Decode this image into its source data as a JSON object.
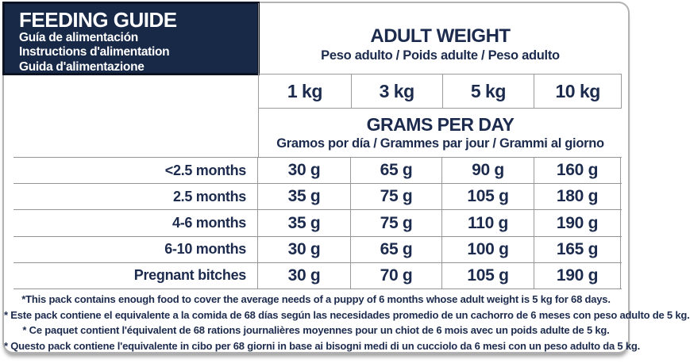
{
  "header": {
    "title": "FEEDING GUIDE",
    "subtitles": [
      "Guía de alimentación",
      "Instructions d'alimentation",
      "Guida d'alimentazione"
    ]
  },
  "adult_weight": {
    "title": "ADULT WEIGHT",
    "subtitle": "Peso adulto / Poids adulte / Peso adulto"
  },
  "weights": [
    "1 kg",
    "3 kg",
    "5 kg",
    "10 kg"
  ],
  "grams_per_day": {
    "title": "GRAMS PER DAY",
    "subtitle": "Gramos por día / Grammes par jour / Grammi al giorno"
  },
  "rows": [
    {
      "label": "<2.5 months",
      "values": [
        "30 g",
        "65 g",
        "90 g",
        "160 g"
      ]
    },
    {
      "label": "2.5 months",
      "values": [
        "35 g",
        "75 g",
        "105 g",
        "180 g"
      ]
    },
    {
      "label": "4-6 months",
      "values": [
        "35 g",
        "75 g",
        "110 g",
        "190 g"
      ]
    },
    {
      "label": "6-10 months",
      "values": [
        "30 g",
        "65 g",
        "100 g",
        "165 g"
      ]
    },
    {
      "label": "Pregnant bitches",
      "values": [
        "30 g",
        "70 g",
        "105 g",
        "190 g"
      ]
    }
  ],
  "footnotes": [
    "*This pack contains enough food to cover the average needs of a puppy of 6 months whose adult weight is 5 kg for 68 days.",
    "* Este pack contiene el equivalente a la comida de 68 días según las necesidades promedio de un cachorro de 6 meses con peso adulto de 5 kg.",
    "* Ce paquet contient l'équivalent de 68 rations journalières moyennes pour un chiot de 6 mois avec un poids adulte de 5 kg.",
    "* Questo pack contiene l'equivalente in cibo per 68 giorni in base ai bisogni medi di un cucciolo da 6 mesi con un peso adulto da 5 kg."
  ],
  "colors": {
    "navy_block": "#182948",
    "navy_block_border": "#0c1322",
    "text_navy": "#1c2b4d",
    "grid_line": "#9a9a9a",
    "outer_border": "#b2b2b2"
  }
}
